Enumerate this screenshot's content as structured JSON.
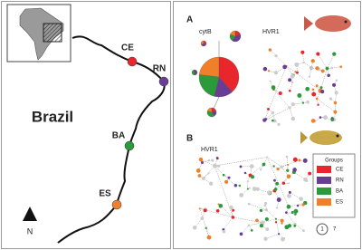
{
  "map": {
    "sites": [
      {
        "label": "CE",
        "color": "#e8262b"
      },
      {
        "label": "RN",
        "color": "#6a3d94"
      },
      {
        "label": "BA",
        "color": "#2a9a3a"
      },
      {
        "label": "ES",
        "color": "#f07f2a"
      }
    ],
    "country": "Brazil",
    "north": "N"
  },
  "panel_a": {
    "letter": "A",
    "left_title": "cytB",
    "right_title": "HVR1"
  },
  "panel_b": {
    "letter": "B",
    "title": "HVR1"
  },
  "legend": {
    "title": "Groups",
    "items": [
      {
        "label": "CE",
        "color": "#e8262b"
      },
      {
        "label": "RN",
        "color": "#6a3d94"
      },
      {
        "label": "BA",
        "color": "#2a9a3a"
      },
      {
        "label": "ES",
        "color": "#f07f2a"
      }
    ]
  },
  "scale": {
    "small": "1",
    "large": "7"
  }
}
